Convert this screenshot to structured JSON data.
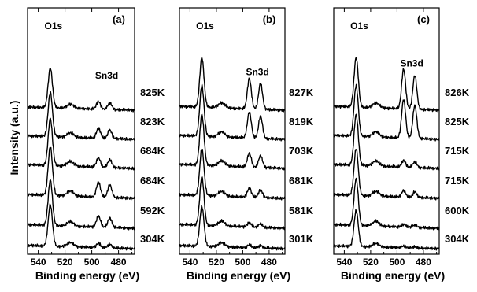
{
  "ylabel": "Intensity (a.u.)",
  "chart_data": [
    {
      "type": "line",
      "panel_label": "(a)",
      "xlabel": "Binding energy (eV)",
      "xlim": [
        548,
        468
      ],
      "xticks": [
        540,
        520,
        500,
        480
      ],
      "peaks": [
        {
          "label": "O1s",
          "energy": 531
        },
        {
          "label": "Sn3d",
          "energy": 490
        }
      ],
      "series": [
        {
          "name": "825K",
          "o1s": 0.72,
          "sn3d": 0.14
        },
        {
          "name": "823K",
          "o1s": 0.8,
          "sn3d": 0.18
        },
        {
          "name": "684K",
          "o1s": 0.85,
          "sn3d": 0.17
        },
        {
          "name": "684K",
          "o1s": 0.88,
          "sn3d": 0.27
        },
        {
          "name": "592K",
          "o1s": 0.82,
          "sn3d": 0.2
        },
        {
          "name": "304K",
          "o1s": 0.75,
          "sn3d": 0.08
        }
      ]
    },
    {
      "type": "line",
      "panel_label": "(b)",
      "xlabel": "Binding energy (eV)",
      "xlim": [
        548,
        468
      ],
      "xticks": [
        540,
        520,
        500,
        480
      ],
      "peaks": [
        {
          "label": "O1s",
          "energy": 531
        },
        {
          "label": "Sn3d",
          "energy": 490
        }
      ],
      "series": [
        {
          "name": "827K",
          "o1s": 0.9,
          "sn3d": 0.55
        },
        {
          "name": "819K",
          "o1s": 0.92,
          "sn3d": 0.47
        },
        {
          "name": "703K",
          "o1s": 0.92,
          "sn3d": 0.25
        },
        {
          "name": "681K",
          "o1s": 0.85,
          "sn3d": 0.16
        },
        {
          "name": "581K",
          "o1s": 0.88,
          "sn3d": 0.08
        },
        {
          "name": "301K",
          "o1s": 0.72,
          "sn3d": 0.05
        }
      ]
    },
    {
      "type": "line",
      "panel_label": "(c)",
      "xlabel": "Binding energy (eV)",
      "xlim": [
        548,
        468
      ],
      "xticks": [
        540,
        520,
        500,
        480
      ],
      "peaks": [
        {
          "label": "O1s",
          "energy": 531
        },
        {
          "label": "Sn3d",
          "energy": 490
        }
      ],
      "series": [
        {
          "name": "826K",
          "o1s": 0.9,
          "sn3d": 0.72
        },
        {
          "name": "825K",
          "o1s": 0.92,
          "sn3d": 0.7
        },
        {
          "name": "715K",
          "o1s": 0.92,
          "sn3d": 0.12
        },
        {
          "name": "715K",
          "o1s": 0.85,
          "sn3d": 0.12
        },
        {
          "name": "600K",
          "o1s": 0.85,
          "sn3d": 0.05
        },
        {
          "name": "304K",
          "o1s": 0.65,
          "sn3d": 0.03
        }
      ]
    }
  ]
}
